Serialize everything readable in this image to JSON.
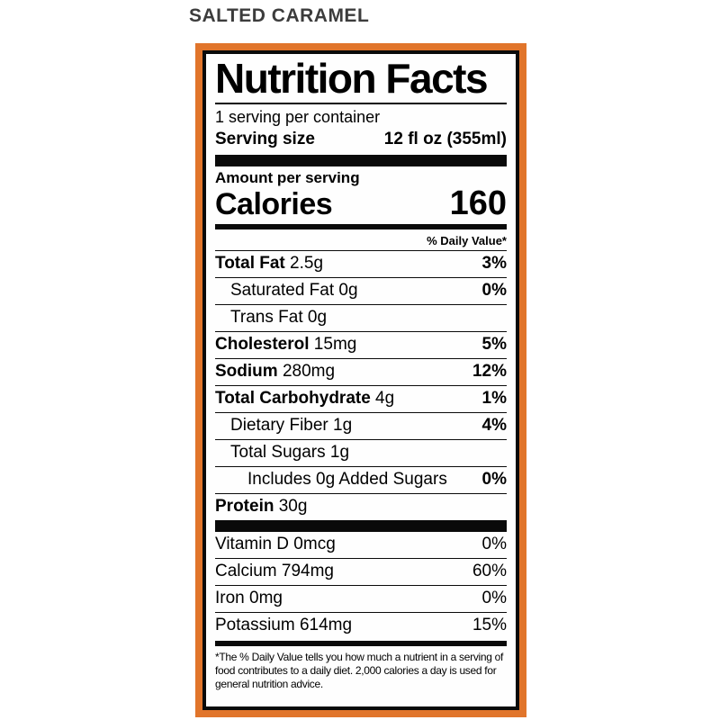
{
  "page": {
    "title": "SALTED CARAMEL"
  },
  "label": {
    "border_color": "#e1752b",
    "header": "Nutrition Facts",
    "servings_per_container": "1 serving per container",
    "serving_size": {
      "label": "Serving size",
      "value": "12 fl oz (355ml)"
    },
    "amount_per_serving": "Amount per serving",
    "calories": {
      "label": "Calories",
      "value": "160"
    },
    "daily_value_header": "% Daily Value*",
    "nutrients": [
      {
        "name": "Total Fat",
        "amount": "2.5g",
        "dv": "3%",
        "indent": 0,
        "bold": true
      },
      {
        "name": "Saturated Fat",
        "amount": "0g",
        "dv": "0%",
        "indent": 1,
        "bold": false
      },
      {
        "name": "Trans Fat",
        "amount": "0g",
        "dv": "",
        "indent": 1,
        "bold": false
      },
      {
        "name": "Cholesterol",
        "amount": "15mg",
        "dv": "5%",
        "indent": 0,
        "bold": true
      },
      {
        "name": "Sodium",
        "amount": "280mg",
        "dv": "12%",
        "indent": 0,
        "bold": true
      },
      {
        "name": "Total Carbohydrate",
        "amount": "4g",
        "dv": "1%",
        "indent": 0,
        "bold": true
      },
      {
        "name": "Dietary Fiber",
        "amount": "1g",
        "dv": "4%",
        "indent": 1,
        "bold": false
      },
      {
        "name": "Total Sugars",
        "amount": "1g",
        "dv": "",
        "indent": 1,
        "bold": false
      },
      {
        "name": "Includes 0g Added Sugars",
        "amount": "",
        "dv": "0%",
        "indent": 2,
        "bold": false
      },
      {
        "name": "Protein",
        "amount": "30g",
        "dv": "",
        "indent": 0,
        "bold": true
      }
    ],
    "vitamins": [
      {
        "name": "Vitamin D",
        "amount": "0mcg",
        "dv": "0%",
        "indent": 0,
        "bold": false
      },
      {
        "name": "Calcium",
        "amount": "794mg",
        "dv": "60%",
        "indent": 0,
        "bold": false
      },
      {
        "name": "Iron",
        "amount": "0mg",
        "dv": "0%",
        "indent": 0,
        "bold": false
      },
      {
        "name": "Potassium",
        "amount": "614mg",
        "dv": "15%",
        "indent": 0,
        "bold": false
      }
    ],
    "footnote": "*The % Daily Value tells you how much a nutrient in a serving of food contributes to a daily diet. 2,000 calories a day is used for general nutrition advice."
  }
}
